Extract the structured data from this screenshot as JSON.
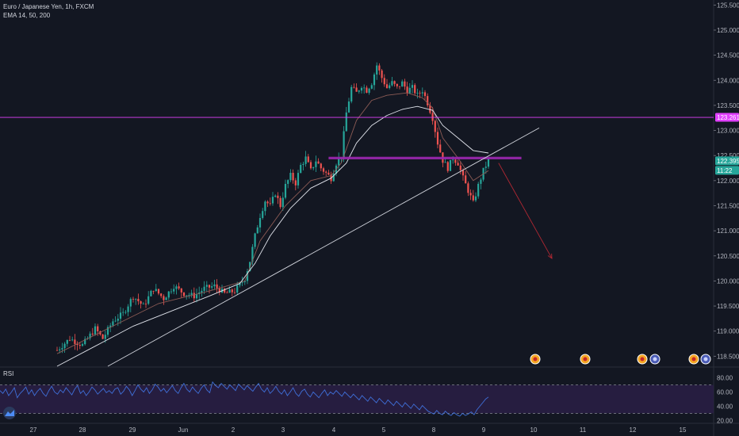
{
  "header": {
    "symbol_line": "Euro / Japanese Yen, 1h, FXCM",
    "indicator_line": "EMA 14, 50, 200"
  },
  "rsi": {
    "label": "RSI"
  },
  "price_axis": {
    "ticks": [
      "125.500",
      "125.000",
      "124.500",
      "124.000",
      "123.500",
      "123.000",
      "122.500",
      "122.000",
      "121.500",
      "121.000",
      "120.500",
      "120.000",
      "119.500",
      "119.000",
      "118.500"
    ],
    "badges": [
      {
        "value": "123.261",
        "color": "#e040fb",
        "text_color": "#ffffff"
      },
      {
        "value": "122.395",
        "color": "#26a69a",
        "text_color": "#ffffff"
      },
      {
        "value": "11:22",
        "color": "#26a69a",
        "text_color": "#ffffff"
      }
    ]
  },
  "rsi_axis": {
    "ticks": [
      "80.00",
      "60.00",
      "40.00",
      "20.00"
    ]
  },
  "time_axis": {
    "labels": [
      "27",
      "28",
      "29",
      "Jun",
      "2",
      "3",
      "4",
      "5",
      "8",
      "9",
      "10",
      "11",
      "12",
      "15"
    ]
  },
  "colors": {
    "background": "#131722",
    "bull": "#26a69a",
    "bear": "#ef5350",
    "ema_fast": "#8c5b55",
    "ema_slow": "#e0e3eb",
    "trendline": "#d1d4dc",
    "resistance": "#e040fb",
    "zone": "#9c27b0",
    "arrow": "#b22833",
    "rsi_line": "#3f6fd8",
    "rsi_band": "#2a1e45"
  },
  "icons": [
    "event-flag-icon",
    "event-flag-icon",
    "event-flag-icon",
    "event-flag-icon",
    "event-flag-icon",
    "event-flag-icon",
    "tradingview-logo-icon"
  ],
  "chart_data": {
    "type": "candlestick",
    "symbol": "EUR/JPY",
    "interval": "1h",
    "ylim": [
      118.3,
      125.6
    ],
    "x_labels": [
      "27",
      "28",
      "29",
      "Jun",
      "2",
      "3",
      "4",
      "5",
      "8",
      "9",
      "10",
      "11",
      "12",
      "15"
    ],
    "price_path": [
      [
        0,
        118.62
      ],
      [
        5,
        118.85
      ],
      [
        10,
        118.72
      ],
      [
        15,
        119.05
      ],
      [
        18,
        118.85
      ],
      [
        22,
        119.2
      ],
      [
        26,
        119.35
      ],
      [
        30,
        119.7
      ],
      [
        34,
        119.5
      ],
      [
        38,
        119.85
      ],
      [
        42,
        119.65
      ],
      [
        46,
        119.9
      ],
      [
        50,
        119.75
      ],
      [
        54,
        119.7
      ],
      [
        58,
        119.85
      ],
      [
        62,
        119.9
      ],
      [
        66,
        119.75
      ],
      [
        70,
        119.8
      ],
      [
        74,
        120.05
      ],
      [
        76,
        120.4
      ],
      [
        78,
        120.9
      ],
      [
        80,
        121.3
      ],
      [
        82,
        121.6
      ],
      [
        84,
        121.5
      ],
      [
        86,
        121.75
      ],
      [
        88,
        121.5
      ],
      [
        90,
        121.9
      ],
      [
        92,
        122.1
      ],
      [
        94,
        121.95
      ],
      [
        96,
        122.3
      ],
      [
        98,
        122.45
      ],
      [
        100,
        122.2
      ],
      [
        102,
        122.4
      ],
      [
        104,
        122.25
      ],
      [
        106,
        122.15
      ],
      [
        108,
        122.05
      ],
      [
        110,
        122.35
      ],
      [
        112,
        122.5
      ],
      [
        114,
        123.35
      ],
      [
        116,
        123.85
      ],
      [
        118,
        123.75
      ],
      [
        120,
        123.9
      ],
      [
        122,
        123.8
      ],
      [
        124,
        123.95
      ],
      [
        126,
        124.3
      ],
      [
        128,
        124.05
      ],
      [
        130,
        123.85
      ],
      [
        132,
        123.95
      ],
      [
        134,
        123.85
      ],
      [
        136,
        123.95
      ],
      [
        138,
        123.8
      ],
      [
        140,
        123.85
      ],
      [
        142,
        123.7
      ],
      [
        144,
        123.8
      ],
      [
        146,
        123.55
      ],
      [
        148,
        123.25
      ],
      [
        150,
        122.75
      ],
      [
        152,
        122.4
      ],
      [
        154,
        122.25
      ],
      [
        156,
        122.45
      ],
      [
        158,
        122.35
      ],
      [
        160,
        122.05
      ],
      [
        162,
        121.8
      ],
      [
        164,
        121.55
      ],
      [
        166,
        121.9
      ],
      [
        168,
        122.2
      ],
      [
        170,
        122.4
      ]
    ],
    "candle_count": 171,
    "last_price": 122.395,
    "countdown": "11:22",
    "ema_fast": [
      [
        0,
        118.55
      ],
      [
        20,
        119.05
      ],
      [
        40,
        119.55
      ],
      [
        60,
        119.8
      ],
      [
        74,
        120.0
      ],
      [
        80,
        120.8
      ],
      [
        90,
        121.5
      ],
      [
        100,
        122.0
      ],
      [
        108,
        122.1
      ],
      [
        112,
        122.35
      ],
      [
        118,
        123.2
      ],
      [
        124,
        123.6
      ],
      [
        130,
        123.7
      ],
      [
        138,
        123.75
      ],
      [
        144,
        123.65
      ],
      [
        148,
        123.45
      ],
      [
        152,
        122.85
      ],
      [
        158,
        122.45
      ],
      [
        164,
        122.0
      ],
      [
        170,
        122.2
      ]
    ],
    "ema_slow": [
      [
        0,
        118.3
      ],
      [
        15,
        118.7
      ],
      [
        30,
        119.1
      ],
      [
        45,
        119.4
      ],
      [
        60,
        119.7
      ],
      [
        72,
        119.95
      ],
      [
        78,
        120.35
      ],
      [
        84,
        120.9
      ],
      [
        92,
        121.45
      ],
      [
        100,
        121.85
      ],
      [
        108,
        122.05
      ],
      [
        114,
        122.35
      ],
      [
        118,
        122.75
      ],
      [
        124,
        123.1
      ],
      [
        130,
        123.3
      ],
      [
        136,
        123.42
      ],
      [
        142,
        123.48
      ],
      [
        148,
        123.4
      ],
      [
        152,
        123.1
      ],
      [
        158,
        122.85
      ],
      [
        164,
        122.6
      ],
      [
        170,
        122.55
      ]
    ],
    "trendline": {
      "from": [
        20,
        118.3
      ],
      "to": [
        190,
        123.05
      ]
    },
    "resistance_level": 123.261,
    "zone_level": 122.45,
    "zone_range": [
      107,
      183
    ],
    "projection_arrow": {
      "from": [
        174,
        122.35
      ],
      "to": [
        195,
        120.45
      ]
    },
    "rsi": {
      "ylim": [
        16,
        94
      ],
      "upper": 70,
      "lower": 30,
      "values": [
        62,
        58,
        64,
        55,
        60,
        66,
        52,
        58,
        62,
        67,
        57,
        63,
        55,
        61,
        65,
        58,
        54,
        62,
        68,
        60,
        57,
        63,
        59,
        66,
        61,
        56,
        64,
        69,
        58,
        62,
        55,
        60,
        67,
        63,
        57,
        61,
        65,
        59,
        62,
        58,
        64,
        66,
        57,
        61,
        68,
        63,
        55,
        62,
        70,
        64,
        60,
        66,
        58,
        63,
        71,
        67,
        61,
        65,
        59,
        64,
        69,
        62,
        58,
        66,
        72,
        64,
        60,
        67,
        62,
        58,
        65,
        70,
        63,
        59,
        74,
        69,
        66,
        72,
        68,
        64,
        70,
        66,
        62,
        71,
        67,
        63,
        69,
        65,
        61,
        67,
        72,
        64,
        60,
        66,
        58,
        62,
        68,
        61,
        57,
        63,
        55,
        60,
        66,
        58,
        54,
        61,
        64,
        57,
        53,
        60,
        56,
        52,
        58,
        63,
        55,
        60,
        57,
        62,
        58,
        54,
        60,
        56,
        52,
        57,
        53,
        49,
        55,
        51,
        47,
        53,
        49,
        45,
        51,
        47,
        43,
        49,
        45,
        41,
        47,
        43,
        39,
        45,
        41,
        37,
        43,
        39,
        35,
        41,
        37,
        33,
        31,
        29,
        34,
        30,
        28,
        33,
        29,
        27,
        31,
        28,
        26,
        30,
        27,
        29,
        32,
        28,
        35,
        40,
        45,
        50,
        53
      ],
      "ticks": [
        80,
        60,
        40,
        20
      ]
    }
  }
}
